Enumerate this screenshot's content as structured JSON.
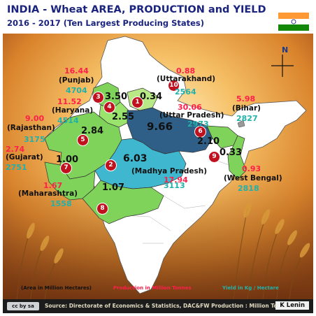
{
  "title": {
    "line1": "INDIA - Wheat  AREA, PRODUCTION and  YIELD",
    "line2": "2016 - 2017 (Ten Largest Producing States)"
  },
  "compass_label": "N",
  "states": [
    {
      "rank": "1",
      "name": "(Uttar  Pradesh)",
      "area": "9.66",
      "production": "30.06",
      "yield": "3113"
    },
    {
      "rank": "2",
      "name": "(Madhya  Pradesh)",
      "area": "6.03",
      "production": "17.94",
      "yield": "2973"
    },
    {
      "rank": "3",
      "name": "(Punjab)",
      "area": "3.50",
      "production": "16.44",
      "yield": "4704"
    },
    {
      "rank": "4",
      "name": "(Haryana)",
      "area": "2.55",
      "production": "11.52",
      "yield": "4514"
    },
    {
      "rank": "5",
      "name": "(Rajasthan)",
      "area": "2.84",
      "production": "9.00",
      "yield": "3175"
    },
    {
      "rank": "6",
      "name": "(Bihar)",
      "area": "2.10",
      "production": "5.98",
      "yield": "2827"
    },
    {
      "rank": "7",
      "name": "(Gujarat)",
      "area": "1.00",
      "production": "2.74",
      "yield": "2751"
    },
    {
      "rank": "8",
      "name": "(Maharashtra)",
      "area": "1.07",
      "production": "1.67",
      "yield": "1558"
    },
    {
      "rank": "9",
      "name": "(West Bengal)",
      "area": "0.33",
      "production": "0.93",
      "yield": "2818"
    },
    {
      "rank": "10",
      "name": "(Uttarakhand)",
      "area": "0.34",
      "production": "0.88",
      "yield": "2564"
    }
  ],
  "legend": {
    "area": "(Area in Million Hectares)",
    "production": "Production in Million Tonnes",
    "yield": "Yield in Kg / Hectare"
  },
  "footer": {
    "license": "cc by sa",
    "source": "Source: Directorate of Economics & Statistics, DAC&FW  Production : Million Tonnes",
    "author": "K Lenin"
  },
  "colors": {
    "title": "#1a237e",
    "area": "#111111",
    "production": "#ff1f4a",
    "yield": "#20b2aa",
    "badge": "#c0111f",
    "map_green": "#7fd35a",
    "map_uttar_pradesh": "#2f5f86",
    "map_madhya_pradesh": "#3fb7cf"
  }
}
